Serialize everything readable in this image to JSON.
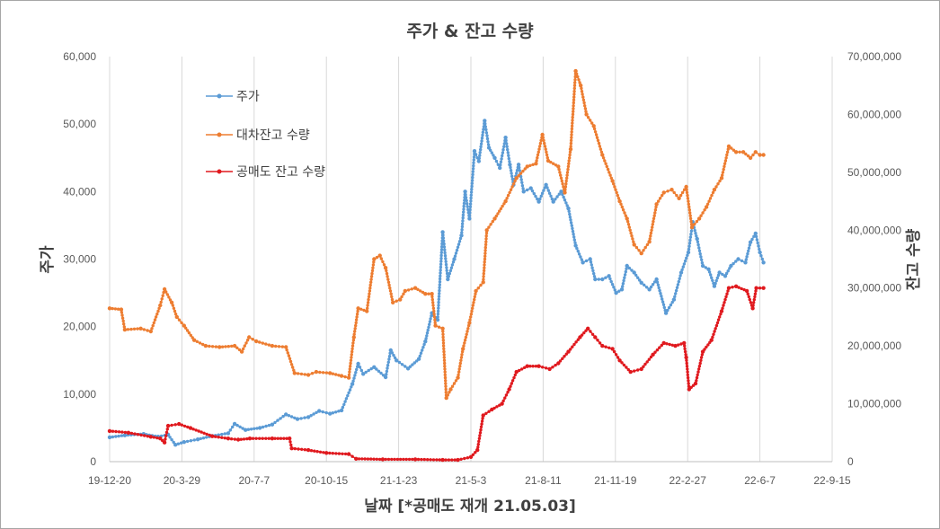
{
  "chart_data": {
    "type": "line",
    "title": "주가 & 잔고 수량",
    "xlabel": "날짜  [*공매도 재개 21.05.03]",
    "ylabel_left": "주가",
    "ylabel_right": "잔고 수량",
    "x_ticks": [
      "19-12-20",
      "20-3-29",
      "20-7-7",
      "20-10-15",
      "21-1-23",
      "21-5-3",
      "21-8-11",
      "21-11-19",
      "22-2-27",
      "22-6-7",
      "22-9-15"
    ],
    "x_range": [
      "2019-12-20",
      "2022-09-15"
    ],
    "ylim_left": [
      0,
      60000
    ],
    "ylim_right": [
      0,
      70000000
    ],
    "y_ticks_left": [
      "0",
      "10,000",
      "20,000",
      "30,000",
      "40,000",
      "50,000",
      "60,000"
    ],
    "y_ticks_right": [
      "0",
      "10,000,000",
      "20,000,000",
      "30,000,000",
      "40,000,000",
      "50,000,000",
      "60,000,000",
      "70,000,000"
    ],
    "grid": "vertical",
    "legend_position": "top-left",
    "series": [
      {
        "name": "주가",
        "axis": "left",
        "color": "#5b9bd5",
        "points": [
          [
            "2019-12-20",
            3600
          ],
          [
            "2020-01-10",
            3900
          ],
          [
            "2020-02-05",
            4100
          ],
          [
            "2020-02-25",
            3700
          ],
          [
            "2020-03-10",
            4000
          ],
          [
            "2020-03-20",
            2500
          ],
          [
            "2020-04-01",
            2900
          ],
          [
            "2020-04-20",
            3300
          ],
          [
            "2020-05-10",
            3800
          ],
          [
            "2020-06-01",
            4200
          ],
          [
            "2020-06-10",
            5600
          ],
          [
            "2020-06-25",
            4700
          ],
          [
            "2020-07-15",
            5000
          ],
          [
            "2020-08-01",
            5500
          ],
          [
            "2020-08-20",
            7000
          ],
          [
            "2020-09-05",
            6300
          ],
          [
            "2020-09-20",
            6600
          ],
          [
            "2020-10-05",
            7500
          ],
          [
            "2020-10-20",
            7100
          ],
          [
            "2020-11-05",
            7600
          ],
          [
            "2020-11-20",
            11500
          ],
          [
            "2020-11-28",
            14500
          ],
          [
            "2020-12-05",
            13000
          ],
          [
            "2020-12-20",
            14000
          ],
          [
            "2021-01-05",
            12500
          ],
          [
            "2021-01-12",
            16500
          ],
          [
            "2021-01-20",
            15000
          ],
          [
            "2021-02-05",
            13800
          ],
          [
            "2021-02-20",
            15200
          ],
          [
            "2021-03-01",
            17800
          ],
          [
            "2021-03-10",
            22000
          ],
          [
            "2021-03-18",
            21000
          ],
          [
            "2021-03-25",
            34000
          ],
          [
            "2021-04-01",
            27000
          ],
          [
            "2021-04-10",
            30000
          ],
          [
            "2021-04-20",
            33500
          ],
          [
            "2021-04-25",
            40000
          ],
          [
            "2021-05-01",
            36000
          ],
          [
            "2021-05-08",
            46000
          ],
          [
            "2021-05-14",
            44500
          ],
          [
            "2021-05-22",
            50500
          ],
          [
            "2021-05-28",
            46500
          ],
          [
            "2021-06-05",
            45000
          ],
          [
            "2021-06-12",
            43500
          ],
          [
            "2021-06-20",
            48000
          ],
          [
            "2021-06-26",
            44000
          ],
          [
            "2021-07-01",
            41000
          ],
          [
            "2021-07-08",
            44000
          ],
          [
            "2021-07-15",
            40000
          ],
          [
            "2021-07-25",
            40500
          ],
          [
            "2021-08-05",
            38500
          ],
          [
            "2021-08-15",
            41000
          ],
          [
            "2021-08-25",
            38500
          ],
          [
            "2021-09-05",
            40000
          ],
          [
            "2021-09-15",
            37500
          ],
          [
            "2021-09-25",
            32000
          ],
          [
            "2021-10-05",
            29500
          ],
          [
            "2021-10-15",
            30000
          ],
          [
            "2021-10-22",
            27000
          ],
          [
            "2021-11-01",
            27000
          ],
          [
            "2021-11-10",
            27500
          ],
          [
            "2021-11-20",
            25000
          ],
          [
            "2021-11-28",
            25500
          ],
          [
            "2021-12-05",
            29000
          ],
          [
            "2021-12-15",
            28000
          ],
          [
            "2021-12-25",
            26500
          ],
          [
            "2022-01-05",
            25500
          ],
          [
            "2022-01-15",
            27000
          ],
          [
            "2022-01-28",
            22000
          ],
          [
            "2022-02-08",
            24000
          ],
          [
            "2022-02-18",
            28000
          ],
          [
            "2022-02-28",
            31000
          ],
          [
            "2022-03-06",
            35500
          ],
          [
            "2022-03-12",
            33000
          ],
          [
            "2022-03-20",
            29000
          ],
          [
            "2022-03-28",
            28500
          ],
          [
            "2022-04-05",
            26000
          ],
          [
            "2022-04-12",
            28000
          ],
          [
            "2022-04-20",
            27500
          ],
          [
            "2022-04-28",
            29000
          ],
          [
            "2022-05-08",
            30000
          ],
          [
            "2022-05-18",
            29500
          ],
          [
            "2022-05-25",
            32500
          ],
          [
            "2022-06-01",
            33800
          ],
          [
            "2022-06-07",
            31000
          ],
          [
            "2022-06-12",
            29500
          ]
        ]
      },
      {
        "name": "대차잔고 수량",
        "axis": "right",
        "color": "#ed7d31",
        "points": [
          [
            "2019-12-20",
            26500000
          ],
          [
            "2020-01-05",
            26300000
          ],
          [
            "2020-01-10",
            22800000
          ],
          [
            "2020-02-01",
            23000000
          ],
          [
            "2020-02-15",
            22500000
          ],
          [
            "2020-02-28",
            27000000
          ],
          [
            "2020-03-05",
            29800000
          ],
          [
            "2020-03-15",
            27500000
          ],
          [
            "2020-03-22",
            25000000
          ],
          [
            "2020-04-01",
            23500000
          ],
          [
            "2020-04-15",
            21000000
          ],
          [
            "2020-05-01",
            20000000
          ],
          [
            "2020-05-20",
            19800000
          ],
          [
            "2020-06-10",
            20000000
          ],
          [
            "2020-06-20",
            19000000
          ],
          [
            "2020-06-30",
            21500000
          ],
          [
            "2020-07-10",
            20800000
          ],
          [
            "2020-08-01",
            20000000
          ],
          [
            "2020-08-20",
            19800000
          ],
          [
            "2020-09-01",
            15300000
          ],
          [
            "2020-09-20",
            15000000
          ],
          [
            "2020-10-01",
            15500000
          ],
          [
            "2020-10-20",
            15300000
          ],
          [
            "2020-11-05",
            14800000
          ],
          [
            "2020-11-15",
            14500000
          ],
          [
            "2020-11-22",
            21500000
          ],
          [
            "2020-11-28",
            26500000
          ],
          [
            "2020-12-10",
            26000000
          ],
          [
            "2020-12-20",
            35000000
          ],
          [
            "2020-12-28",
            35600000
          ],
          [
            "2021-01-05",
            33500000
          ],
          [
            "2021-01-15",
            27500000
          ],
          [
            "2021-01-25",
            28000000
          ],
          [
            "2021-02-01",
            29500000
          ],
          [
            "2021-02-15",
            30000000
          ],
          [
            "2021-03-01",
            29000000
          ],
          [
            "2021-03-10",
            29000000
          ],
          [
            "2021-03-15",
            23500000
          ],
          [
            "2021-03-25",
            23000000
          ],
          [
            "2021-03-30",
            11000000
          ],
          [
            "2021-04-05",
            12500000
          ],
          [
            "2021-04-15",
            14500000
          ],
          [
            "2021-04-22",
            19500000
          ],
          [
            "2021-05-01",
            24000000
          ],
          [
            "2021-05-10",
            29500000
          ],
          [
            "2021-05-20",
            31000000
          ],
          [
            "2021-05-25",
            40000000
          ],
          [
            "2021-06-05",
            42000000
          ],
          [
            "2021-06-20",
            45000000
          ],
          [
            "2021-07-05",
            49000000
          ],
          [
            "2021-07-20",
            51000000
          ],
          [
            "2021-08-01",
            51500000
          ],
          [
            "2021-08-10",
            56500000
          ],
          [
            "2021-08-18",
            52000000
          ],
          [
            "2021-09-01",
            51000000
          ],
          [
            "2021-09-10",
            46500000
          ],
          [
            "2021-09-18",
            54000000
          ],
          [
            "2021-09-25",
            67500000
          ],
          [
            "2021-10-02",
            65000000
          ],
          [
            "2021-10-10",
            60000000
          ],
          [
            "2021-10-20",
            58000000
          ],
          [
            "2021-11-01",
            53000000
          ],
          [
            "2021-11-15",
            48500000
          ],
          [
            "2021-11-25",
            45000000
          ],
          [
            "2021-12-05",
            42000000
          ],
          [
            "2021-12-15",
            37500000
          ],
          [
            "2021-12-25",
            36000000
          ],
          [
            "2022-01-05",
            38000000
          ],
          [
            "2022-01-15",
            44500000
          ],
          [
            "2022-01-25",
            46500000
          ],
          [
            "2022-02-05",
            47000000
          ],
          [
            "2022-02-15",
            45500000
          ],
          [
            "2022-02-25",
            47500000
          ],
          [
            "2022-03-05",
            40500000
          ],
          [
            "2022-03-15",
            42000000
          ],
          [
            "2022-03-25",
            44000000
          ],
          [
            "2022-04-05",
            47000000
          ],
          [
            "2022-04-15",
            49000000
          ],
          [
            "2022-04-25",
            54500000
          ],
          [
            "2022-05-05",
            53500000
          ],
          [
            "2022-05-15",
            53500000
          ],
          [
            "2022-05-25",
            52500000
          ],
          [
            "2022-06-01",
            53500000
          ],
          [
            "2022-06-07",
            53000000
          ],
          [
            "2022-06-12",
            53000000
          ]
        ]
      },
      {
        "name": "공매도 잔고 수량",
        "axis": "right",
        "color": "#e0191e",
        "points": [
          [
            "2019-12-20",
            5300000
          ],
          [
            "2020-01-15",
            5000000
          ],
          [
            "2020-02-15",
            4300000
          ],
          [
            "2020-02-28",
            4000000
          ],
          [
            "2020-03-05",
            3300000
          ],
          [
            "2020-03-10",
            6200000
          ],
          [
            "2020-03-25",
            6500000
          ],
          [
            "2020-04-10",
            5800000
          ],
          [
            "2020-05-10",
            4400000
          ],
          [
            "2020-06-01",
            4000000
          ],
          [
            "2020-06-15",
            3800000
          ],
          [
            "2020-07-01",
            4000000
          ],
          [
            "2020-08-01",
            4000000
          ],
          [
            "2020-08-25",
            4000000
          ],
          [
            "2020-08-28",
            2300000
          ],
          [
            "2020-09-20",
            2000000
          ],
          [
            "2020-10-15",
            1500000
          ],
          [
            "2020-11-15",
            1300000
          ],
          [
            "2020-11-25",
            500000
          ],
          [
            "2021-01-01",
            400000
          ],
          [
            "2021-02-15",
            400000
          ],
          [
            "2021-03-25",
            300000
          ],
          [
            "2021-04-15",
            300000
          ],
          [
            "2021-05-03",
            800000
          ],
          [
            "2021-05-12",
            2000000
          ],
          [
            "2021-05-20",
            8000000
          ],
          [
            "2021-06-01",
            9000000
          ],
          [
            "2021-06-15",
            10000000
          ],
          [
            "2021-06-25",
            12500000
          ],
          [
            "2021-07-05",
            15500000
          ],
          [
            "2021-07-20",
            16500000
          ],
          [
            "2021-08-05",
            16500000
          ],
          [
            "2021-08-20",
            16000000
          ],
          [
            "2021-09-01",
            17000000
          ],
          [
            "2021-09-15",
            19000000
          ],
          [
            "2021-10-01",
            21500000
          ],
          [
            "2021-10-12",
            23000000
          ],
          [
            "2021-10-22",
            21500000
          ],
          [
            "2021-11-01",
            20000000
          ],
          [
            "2021-11-15",
            19500000
          ],
          [
            "2021-11-25",
            17500000
          ],
          [
            "2021-12-10",
            15500000
          ],
          [
            "2021-12-25",
            16000000
          ],
          [
            "2022-01-10",
            18500000
          ],
          [
            "2022-01-25",
            20500000
          ],
          [
            "2022-02-10",
            20000000
          ],
          [
            "2022-02-22",
            20500000
          ],
          [
            "2022-02-25",
            18000000
          ],
          [
            "2022-03-01",
            12500000
          ],
          [
            "2022-03-10",
            13500000
          ],
          [
            "2022-03-20",
            19000000
          ],
          [
            "2022-04-01",
            21000000
          ],
          [
            "2022-04-15",
            26000000
          ],
          [
            "2022-04-25",
            30000000
          ],
          [
            "2022-05-05",
            30300000
          ],
          [
            "2022-05-20",
            29500000
          ],
          [
            "2022-05-28",
            26500000
          ],
          [
            "2022-06-02",
            30000000
          ],
          [
            "2022-06-12",
            30000000
          ]
        ]
      }
    ]
  }
}
